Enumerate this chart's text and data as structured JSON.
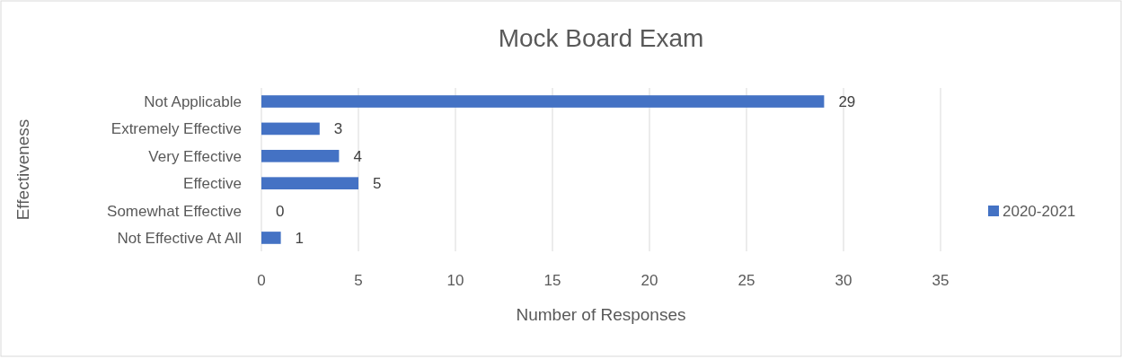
{
  "chart_data": {
    "type": "bar",
    "orientation": "horizontal",
    "title": "Mock Board Exam",
    "xlabel": "Number of Responses",
    "ylabel": "Effectiveness",
    "categories": [
      "Not Applicable",
      "Extremely Effective",
      "Very Effective",
      "Effective",
      "Somewhat Effective",
      "Not Effective At All"
    ],
    "series": [
      {
        "name": "2020-2021",
        "color": "#4472c4",
        "values": [
          29,
          3,
          4,
          5,
          0,
          1
        ]
      }
    ],
    "xlim": [
      0,
      35
    ],
    "xticks": [
      0,
      5,
      10,
      15,
      20,
      25,
      30,
      35
    ],
    "grid": "x",
    "legend": "right",
    "data_labels": true
  }
}
